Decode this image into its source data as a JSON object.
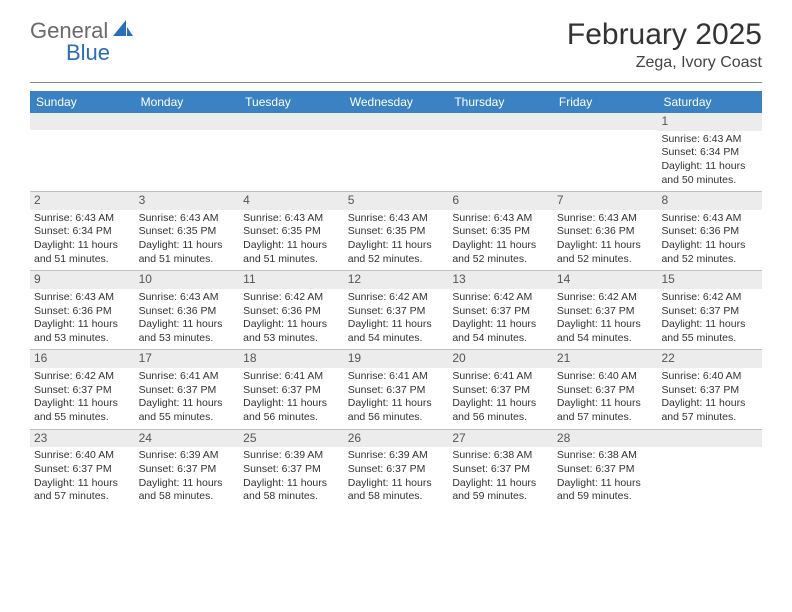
{
  "logo": {
    "text1": "General",
    "text2": "Blue",
    "color1": "#6a6a6a",
    "color2": "#2a6db8",
    "icon_color": "#2a6db8"
  },
  "title": "February 2025",
  "location": "Zega, Ivory Coast",
  "header_bg": "#3b82c4",
  "day_bg": "#ececec",
  "rule_color": "#bfbfbf",
  "days": [
    "Sunday",
    "Monday",
    "Tuesday",
    "Wednesday",
    "Thursday",
    "Friday",
    "Saturday"
  ],
  "weeks": [
    [
      null,
      null,
      null,
      null,
      null,
      null,
      {
        "n": "1",
        "sunrise": "Sunrise: 6:43 AM",
        "sunset": "Sunset: 6:34 PM",
        "daylight": "Daylight: 11 hours and 50 minutes."
      }
    ],
    [
      {
        "n": "2",
        "sunrise": "Sunrise: 6:43 AM",
        "sunset": "Sunset: 6:34 PM",
        "daylight": "Daylight: 11 hours and 51 minutes."
      },
      {
        "n": "3",
        "sunrise": "Sunrise: 6:43 AM",
        "sunset": "Sunset: 6:35 PM",
        "daylight": "Daylight: 11 hours and 51 minutes."
      },
      {
        "n": "4",
        "sunrise": "Sunrise: 6:43 AM",
        "sunset": "Sunset: 6:35 PM",
        "daylight": "Daylight: 11 hours and 51 minutes."
      },
      {
        "n": "5",
        "sunrise": "Sunrise: 6:43 AM",
        "sunset": "Sunset: 6:35 PM",
        "daylight": "Daylight: 11 hours and 52 minutes."
      },
      {
        "n": "6",
        "sunrise": "Sunrise: 6:43 AM",
        "sunset": "Sunset: 6:35 PM",
        "daylight": "Daylight: 11 hours and 52 minutes."
      },
      {
        "n": "7",
        "sunrise": "Sunrise: 6:43 AM",
        "sunset": "Sunset: 6:36 PM",
        "daylight": "Daylight: 11 hours and 52 minutes."
      },
      {
        "n": "8",
        "sunrise": "Sunrise: 6:43 AM",
        "sunset": "Sunset: 6:36 PM",
        "daylight": "Daylight: 11 hours and 52 minutes."
      }
    ],
    [
      {
        "n": "9",
        "sunrise": "Sunrise: 6:43 AM",
        "sunset": "Sunset: 6:36 PM",
        "daylight": "Daylight: 11 hours and 53 minutes."
      },
      {
        "n": "10",
        "sunrise": "Sunrise: 6:43 AM",
        "sunset": "Sunset: 6:36 PM",
        "daylight": "Daylight: 11 hours and 53 minutes."
      },
      {
        "n": "11",
        "sunrise": "Sunrise: 6:42 AM",
        "sunset": "Sunset: 6:36 PM",
        "daylight": "Daylight: 11 hours and 53 minutes."
      },
      {
        "n": "12",
        "sunrise": "Sunrise: 6:42 AM",
        "sunset": "Sunset: 6:37 PM",
        "daylight": "Daylight: 11 hours and 54 minutes."
      },
      {
        "n": "13",
        "sunrise": "Sunrise: 6:42 AM",
        "sunset": "Sunset: 6:37 PM",
        "daylight": "Daylight: 11 hours and 54 minutes."
      },
      {
        "n": "14",
        "sunrise": "Sunrise: 6:42 AM",
        "sunset": "Sunset: 6:37 PM",
        "daylight": "Daylight: 11 hours and 54 minutes."
      },
      {
        "n": "15",
        "sunrise": "Sunrise: 6:42 AM",
        "sunset": "Sunset: 6:37 PM",
        "daylight": "Daylight: 11 hours and 55 minutes."
      }
    ],
    [
      {
        "n": "16",
        "sunrise": "Sunrise: 6:42 AM",
        "sunset": "Sunset: 6:37 PM",
        "daylight": "Daylight: 11 hours and 55 minutes."
      },
      {
        "n": "17",
        "sunrise": "Sunrise: 6:41 AM",
        "sunset": "Sunset: 6:37 PM",
        "daylight": "Daylight: 11 hours and 55 minutes."
      },
      {
        "n": "18",
        "sunrise": "Sunrise: 6:41 AM",
        "sunset": "Sunset: 6:37 PM",
        "daylight": "Daylight: 11 hours and 56 minutes."
      },
      {
        "n": "19",
        "sunrise": "Sunrise: 6:41 AM",
        "sunset": "Sunset: 6:37 PM",
        "daylight": "Daylight: 11 hours and 56 minutes."
      },
      {
        "n": "20",
        "sunrise": "Sunrise: 6:41 AM",
        "sunset": "Sunset: 6:37 PM",
        "daylight": "Daylight: 11 hours and 56 minutes."
      },
      {
        "n": "21",
        "sunrise": "Sunrise: 6:40 AM",
        "sunset": "Sunset: 6:37 PM",
        "daylight": "Daylight: 11 hours and 57 minutes."
      },
      {
        "n": "22",
        "sunrise": "Sunrise: 6:40 AM",
        "sunset": "Sunset: 6:37 PM",
        "daylight": "Daylight: 11 hours and 57 minutes."
      }
    ],
    [
      {
        "n": "23",
        "sunrise": "Sunrise: 6:40 AM",
        "sunset": "Sunset: 6:37 PM",
        "daylight": "Daylight: 11 hours and 57 minutes."
      },
      {
        "n": "24",
        "sunrise": "Sunrise: 6:39 AM",
        "sunset": "Sunset: 6:37 PM",
        "daylight": "Daylight: 11 hours and 58 minutes."
      },
      {
        "n": "25",
        "sunrise": "Sunrise: 6:39 AM",
        "sunset": "Sunset: 6:37 PM",
        "daylight": "Daylight: 11 hours and 58 minutes."
      },
      {
        "n": "26",
        "sunrise": "Sunrise: 6:39 AM",
        "sunset": "Sunset: 6:37 PM",
        "daylight": "Daylight: 11 hours and 58 minutes."
      },
      {
        "n": "27",
        "sunrise": "Sunrise: 6:38 AM",
        "sunset": "Sunset: 6:37 PM",
        "daylight": "Daylight: 11 hours and 59 minutes."
      },
      {
        "n": "28",
        "sunrise": "Sunrise: 6:38 AM",
        "sunset": "Sunset: 6:37 PM",
        "daylight": "Daylight: 11 hours and 59 minutes."
      },
      null
    ]
  ]
}
